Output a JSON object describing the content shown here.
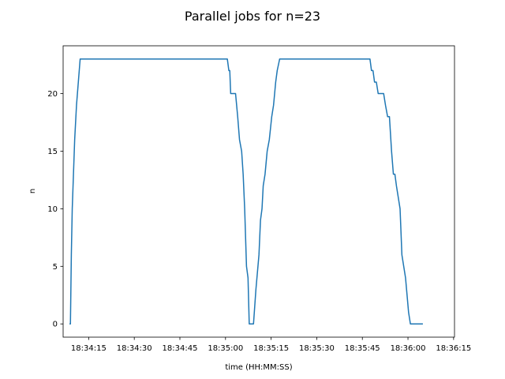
{
  "chart_data": {
    "type": "line",
    "title": "Parallel jobs for n=23",
    "xlabel": "time (HH:MM:SS)",
    "ylabel": "n",
    "x_ticks": [
      {
        "t": 255,
        "label": "18:34:15"
      },
      {
        "t": 270,
        "label": "18:34:30"
      },
      {
        "t": 285,
        "label": "18:34:45"
      },
      {
        "t": 300,
        "label": "18:35:00"
      },
      {
        "t": 315,
        "label": "18:35:15"
      },
      {
        "t": 330,
        "label": "18:35:30"
      },
      {
        "t": 345,
        "label": "18:35:45"
      },
      {
        "t": 360,
        "label": "18:36:00"
      },
      {
        "t": 375,
        "label": "18:36:15"
      }
    ],
    "y_ticks": [
      0,
      5,
      10,
      15,
      20
    ],
    "xlim": [
      246.6,
      375.3
    ],
    "ylim": [
      -1.15,
      24.15
    ],
    "grid": false,
    "legend": "none",
    "series": [
      {
        "color": "#1f77b4",
        "x": [
          248.7,
          249.0,
          249.3,
          249.6,
          250.0,
          250.4,
          251.0,
          251.6,
          252.2,
          252.8,
          253.2,
          253.6,
          254.4,
          255.0,
          268,
          285,
          300.6,
          301.1,
          301.4,
          301.7,
          302.3,
          302.8,
          303.3,
          304.0,
          304.6,
          305.3,
          305.8,
          306.3,
          306.9,
          307.4,
          307.8,
          308.3,
          308.8,
          309.2,
          310.0,
          311.0,
          311.5,
          312.0,
          312.4,
          313.0,
          313.7,
          314.4,
          314.8,
          315.2,
          315.8,
          316.5,
          317.0,
          317.8,
          318.5,
          319.1,
          320.0,
          321.0,
          321.8,
          324.0,
          336,
          347.0,
          347.5,
          348.0,
          348.5,
          349.0,
          349.6,
          350.2,
          351.0,
          352.0,
          352.6,
          353.3,
          353.9,
          354.6,
          355.2,
          355.7,
          356.2,
          356.8,
          357.4,
          358.0,
          359.2,
          360.2,
          360.8,
          361.4,
          361.9,
          362.5,
          363.2,
          363.8,
          364.2,
          364.9
        ],
        "y": [
          0,
          0,
          6,
          10,
          13,
          16,
          19,
          21,
          23,
          23,
          23,
          23,
          23,
          23,
          23,
          23,
          23,
          22,
          22,
          20,
          20,
          20,
          20,
          18,
          16,
          15,
          13,
          10,
          5,
          4,
          0,
          0,
          0,
          0,
          3,
          6,
          9,
          10,
          12,
          13,
          15,
          16,
          17,
          18,
          19,
          21,
          22,
          23,
          23,
          23,
          23,
          23,
          23,
          23,
          23,
          23,
          23,
          22,
          22,
          21,
          21,
          20,
          20,
          20,
          19,
          18,
          18,
          15,
          13,
          13,
          12,
          11,
          10,
          6,
          4,
          1,
          0,
          0,
          0,
          0,
          0,
          0,
          0,
          0
        ]
      }
    ]
  }
}
